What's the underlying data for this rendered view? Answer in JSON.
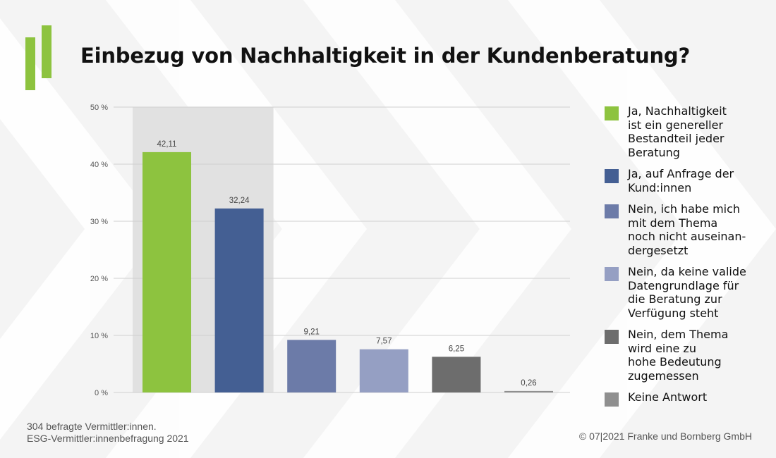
{
  "title": "Einbezug von Nachhaltigkeit in der Kundenberatung?",
  "colors": {
    "brand_green": "#8dc33f",
    "highlight_band": "#e1e1e1",
    "gridline": "#cfcfcf",
    "background": "#f4f4f4",
    "background_chevrons": "#ffffff"
  },
  "chart_data": {
    "type": "bar",
    "categories": [
      "Ja, Nachhaltigkeit ist ein genereller Bestandteil jeder Beratung",
      "Ja, auf Anfrage der Kund:innen",
      "Nein, ich habe mich mit dem Thema noch nicht auseinan-dergesetzt",
      "Nein, da keine valide Datengrundlage für die Beratung zur Verfügung steht",
      "Nein, dem Thema wird eine zu hohe Bedeutung zugemessen",
      "Keine Antwort"
    ],
    "values": [
      42.11,
      32.24,
      9.21,
      7.57,
      6.25,
      0.26
    ],
    "value_labels": [
      "42,11",
      "32,24",
      "9,21",
      "7,57",
      "6,25",
      "0,26"
    ],
    "bar_colors": [
      "#8dc33f",
      "#445f93",
      "#6c7ba8",
      "#959fc3",
      "#6d6d6d",
      "#8f8f8f"
    ],
    "highlighted_categories": [
      0,
      1
    ],
    "ylim": [
      0,
      50
    ],
    "yticks": [
      0,
      10,
      20,
      30,
      40,
      50
    ],
    "ytick_labels": [
      "0 %",
      "10 %",
      "20 %",
      "30 %",
      "40 %",
      "50 %"
    ],
    "grid": true,
    "legend_position": "right",
    "xlabel": "",
    "ylabel": ""
  },
  "legend": [
    {
      "lines": [
        "Ja, Nachhaltigkeit",
        "ist ein genereller",
        "Bestandteil jeder",
        "Beratung"
      ],
      "color": "#8dc33f"
    },
    {
      "lines": [
        "Ja, auf Anfrage der",
        "Kund:innen"
      ],
      "color": "#445f93"
    },
    {
      "lines": [
        "Nein, ich habe mich",
        "mit dem Thema",
        "noch nicht auseinan-",
        "dergesetzt"
      ],
      "color": "#6c7ba8"
    },
    {
      "lines": [
        "Nein, da keine valide",
        "Datengrundlage für",
        "die Beratung zur",
        "Verfügung steht"
      ],
      "color": "#959fc3"
    },
    {
      "lines": [
        "Nein, dem Thema",
        "wird eine zu",
        "hohe Bedeutung",
        "zugemessen"
      ],
      "color": "#6d6d6d"
    },
    {
      "lines": [
        "Keine Antwort"
      ],
      "color": "#8f8f8f"
    }
  ],
  "footer": {
    "source_line1": "304 befragte Vermittler:innen.",
    "source_line2": "ESG-Vermittler:innenbefragung 2021",
    "copyright": "© 07|2021 Franke und Bornberg GmbH"
  }
}
